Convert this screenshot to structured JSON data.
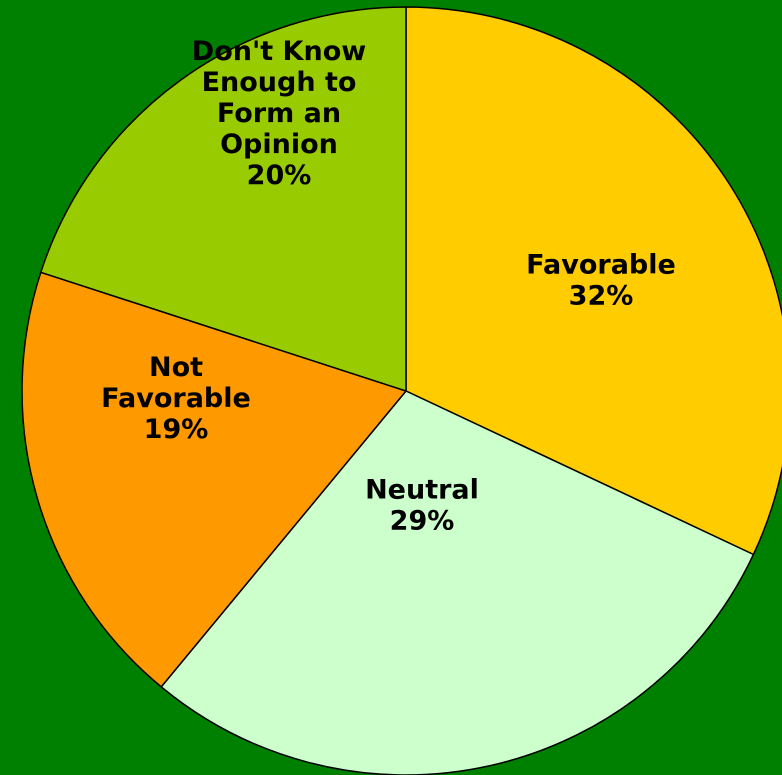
{
  "chart_data": {
    "type": "pie",
    "start_angle_deg": 0,
    "direction": "clockwise",
    "background": "#008000",
    "slices": [
      {
        "name": "Favorable",
        "label_lines": [
          "Favorable"
        ],
        "value": 32,
        "value_label": "32%",
        "color": "#ffcc00"
      },
      {
        "name": "Neutral",
        "label_lines": [
          "Neutral"
        ],
        "value": 29,
        "value_label": "29%",
        "color": "#ccffcc"
      },
      {
        "name": "Not Favorable",
        "label_lines": [
          "Not",
          "Favorable"
        ],
        "value": 19,
        "value_label": "19%",
        "color": "#ff9900"
      },
      {
        "name": "Don't Know Enough to Form an Opinion",
        "label_lines": [
          "Don't Know",
          "Enough to",
          "Form an",
          "Opinion"
        ],
        "value": 20,
        "value_label": "20%",
        "color": "#99cc00"
      }
    ]
  }
}
